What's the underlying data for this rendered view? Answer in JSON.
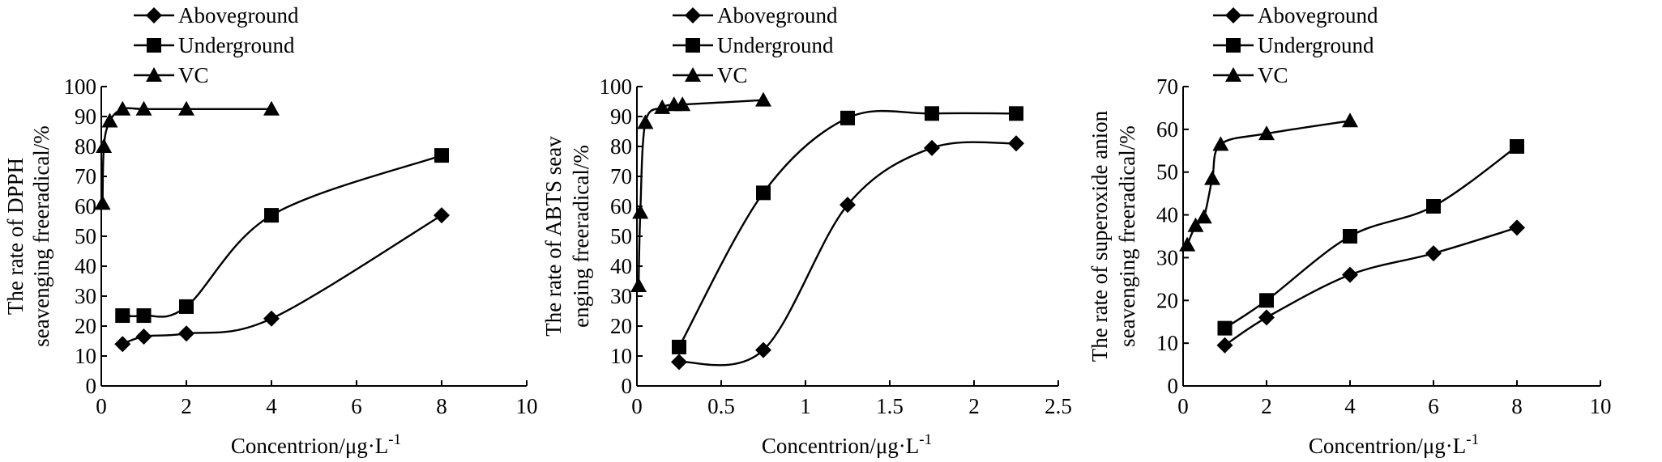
{
  "chart_data": [
    {
      "type": "line",
      "title": "",
      "xlabel": "Concentrion/μg·L",
      "xlabel_sup": "-1",
      "ylabel_lines": [
        "The rate of DPPH",
        "seavenging freeradical/%"
      ],
      "xlim": [
        0,
        10
      ],
      "ylim": [
        0,
        100
      ],
      "x_ticks": [
        0,
        2,
        4,
        6,
        8,
        10
      ],
      "y_ticks": [
        0,
        10,
        20,
        30,
        40,
        50,
        60,
        70,
        80,
        90,
        100
      ],
      "x_tick_labels": [
        "0",
        "2",
        "4",
        "6",
        "8",
        "10"
      ],
      "y_tick_labels": [
        "0",
        "10",
        "20",
        "30",
        "40",
        "50",
        "60",
        "70",
        "80",
        "90",
        "100"
      ],
      "grid": false,
      "legend_position": "top-left, above plot",
      "series": [
        {
          "name": "Aboveground",
          "marker": "diamond",
          "x": [
            0.5,
            1,
            2,
            4,
            8
          ],
          "y": [
            14,
            16.5,
            17.5,
            22.5,
            57
          ]
        },
        {
          "name": "Underground",
          "marker": "square",
          "x": [
            0.5,
            1,
            2,
            4,
            8
          ],
          "y": [
            23.5,
            23.5,
            26.5,
            57,
            77
          ]
        },
        {
          "name": "VC",
          "marker": "triangle",
          "x": [
            0.03,
            0.06,
            0.2,
            0.5,
            1,
            2,
            4
          ],
          "y": [
            61,
            80,
            88.5,
            92.5,
            92.5,
            92.5,
            92.5
          ]
        }
      ]
    },
    {
      "type": "line",
      "title": "",
      "xlabel": "Concentrion/μg·L",
      "xlabel_sup": "-1",
      "ylabel_lines": [
        "The rate of ABTS seav",
        "enging freeradical/%"
      ],
      "xlim": [
        0,
        2.5
      ],
      "ylim": [
        0,
        100
      ],
      "x_ticks": [
        0,
        0.5,
        1,
        1.5,
        2,
        2.5
      ],
      "y_ticks": [
        0,
        10,
        20,
        30,
        40,
        50,
        60,
        70,
        80,
        90,
        100
      ],
      "x_tick_labels": [
        "0",
        "0.5",
        "1",
        "1.5",
        "2",
        "2.5"
      ],
      "y_tick_labels": [
        "0",
        "10",
        "20",
        "30",
        "40",
        "50",
        "60",
        "70",
        "80",
        "90",
        "100"
      ],
      "grid": false,
      "legend_position": "top-left, above plot",
      "series": [
        {
          "name": "Aboveground",
          "marker": "diamond",
          "x": [
            0.25,
            0.75,
            1.25,
            1.75,
            2.25
          ],
          "y": [
            8,
            12,
            60.5,
            79.5,
            81
          ]
        },
        {
          "name": "Underground",
          "marker": "square",
          "x": [
            0.25,
            0.75,
            1.25,
            1.75,
            2.25
          ],
          "y": [
            13,
            64.5,
            89.5,
            91,
            91
          ]
        },
        {
          "name": "VC",
          "marker": "triangle",
          "x": [
            0.01,
            0.02,
            0.05,
            0.15,
            0.22,
            0.27,
            0.75
          ],
          "y": [
            33.5,
            58,
            88,
            93,
            94,
            94,
            95.5
          ]
        }
      ]
    },
    {
      "type": "line",
      "title": "",
      "xlabel": "Concentrion/μg·L",
      "xlabel_sup": "-1",
      "ylabel_lines": [
        "The rate of superoxide anion",
        "seavenging freeradical/%"
      ],
      "xlim": [
        0,
        10
      ],
      "ylim": [
        0,
        70
      ],
      "x_ticks": [
        0,
        2,
        4,
        6,
        8,
        10
      ],
      "y_ticks": [
        0,
        10,
        20,
        30,
        40,
        50,
        60,
        70
      ],
      "x_tick_labels": [
        "0",
        "2",
        "4",
        "6",
        "8",
        "10"
      ],
      "y_tick_labels": [
        "0",
        "10",
        "20",
        "30",
        "40",
        "50",
        "60",
        "70"
      ],
      "grid": false,
      "legend_position": "top-left, above plot",
      "series": [
        {
          "name": "Aboveground",
          "marker": "diamond",
          "x": [
            1,
            2,
            4,
            6,
            8
          ],
          "y": [
            9.5,
            16,
            26,
            31,
            37
          ]
        },
        {
          "name": "Underground",
          "marker": "square",
          "x": [
            1,
            2,
            4,
            6,
            8
          ],
          "y": [
            13.5,
            20,
            35,
            42,
            56
          ]
        },
        {
          "name": "VC",
          "marker": "triangle",
          "x": [
            0.1,
            0.3,
            0.5,
            0.7,
            0.9,
            2,
            4
          ],
          "y": [
            33,
            37.5,
            39.5,
            48.5,
            56.5,
            59,
            62
          ]
        }
      ]
    }
  ]
}
